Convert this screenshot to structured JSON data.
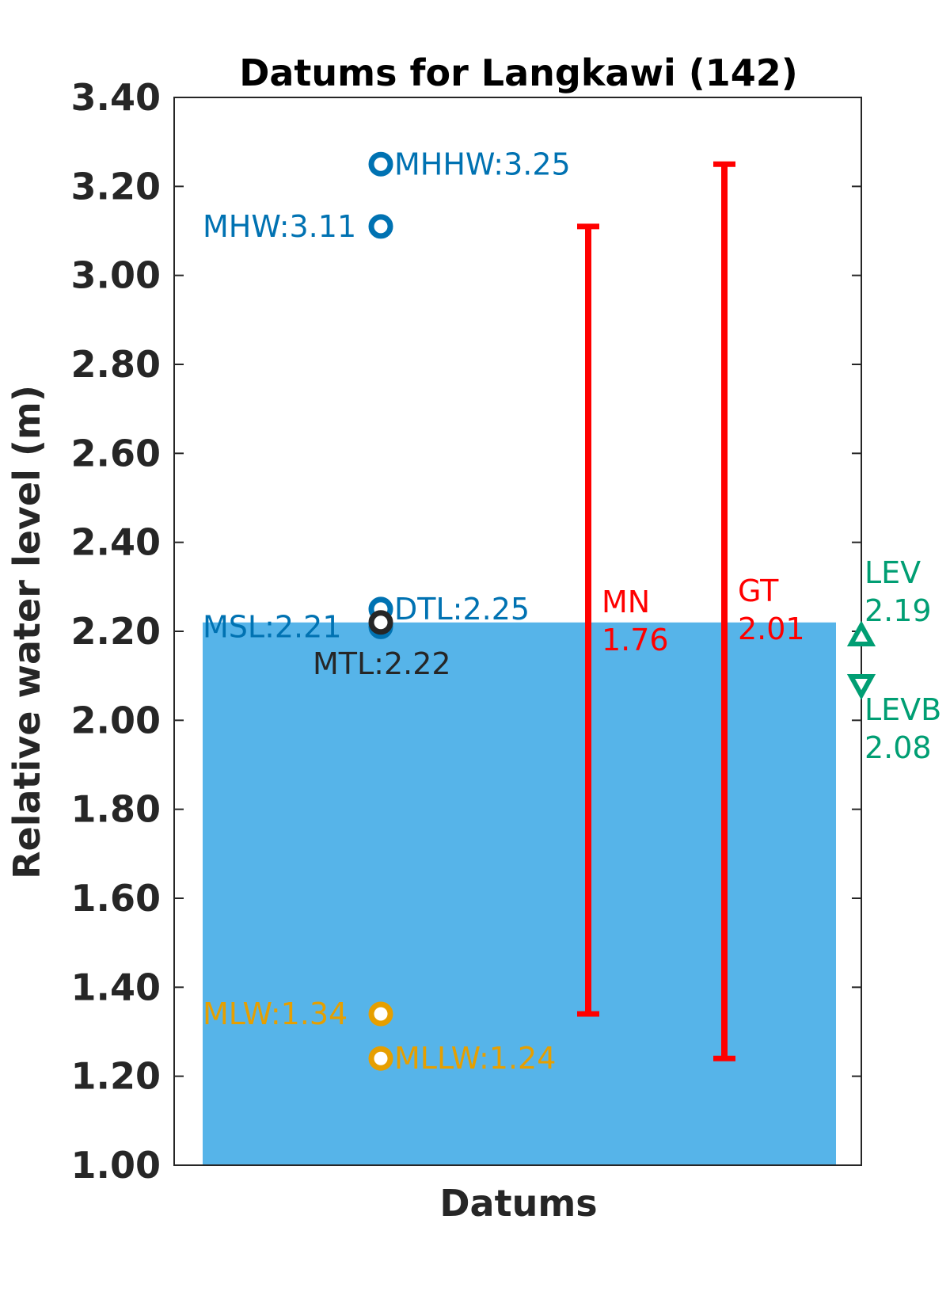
{
  "chart_data": {
    "type": "bar",
    "title": "Datums for Langkawi (142)",
    "xlabel": "Datums",
    "ylabel": "Relative water level (m)",
    "ylim": [
      1.0,
      3.4
    ],
    "y_ticks": [
      "1.00",
      "1.20",
      "1.40",
      "1.60",
      "1.80",
      "2.00",
      "2.20",
      "2.40",
      "2.60",
      "2.80",
      "3.00",
      "3.20",
      "3.40"
    ],
    "y_tick_values": [
      1.0,
      1.2,
      1.4,
      1.6,
      1.8,
      2.0,
      2.2,
      2.4,
      2.6,
      2.8,
      3.0,
      3.2,
      3.4
    ],
    "grid": false,
    "bar": {
      "value": 2.22,
      "color": "#56B4E9"
    },
    "datums": [
      {
        "name": "MHHW",
        "label": "MHHW:3.25",
        "value": 3.25,
        "color": "#0072B2",
        "side": "right"
      },
      {
        "name": "MHW",
        "label": "MHW:3.11",
        "value": 3.11,
        "color": "#0072B2",
        "side": "left"
      },
      {
        "name": "DTL",
        "label": "DTL:2.25",
        "value": 2.25,
        "color": "#0072B2",
        "side": "right"
      },
      {
        "name": "MSL",
        "label": "MSL:2.21",
        "value": 2.21,
        "color": "#0072B2",
        "side": "left"
      },
      {
        "name": "MTL",
        "label": "MTL:2.22",
        "value": 2.22,
        "color": "#262626",
        "side": "below"
      },
      {
        "name": "MLW",
        "label": "MLW:1.34",
        "value": 1.34,
        "color": "#E69F00",
        "side": "left"
      },
      {
        "name": "MLLW",
        "label": "MLLW:1.24",
        "value": 1.24,
        "color": "#E69F00",
        "side": "right"
      }
    ],
    "ranges": [
      {
        "name": "MN",
        "value_label": "1.76",
        "low": 1.34,
        "high": 3.11,
        "color": "#FF0000"
      },
      {
        "name": "GT",
        "value_label": "2.01",
        "low": 1.24,
        "high": 3.25,
        "color": "#FF0000"
      }
    ],
    "extremes": [
      {
        "name": "LEV",
        "value_label": "2.19",
        "value": 2.19,
        "marker": "triangle-up",
        "color": "#009E73"
      },
      {
        "name": "LEVB",
        "value_label": "2.08",
        "value": 2.08,
        "marker": "triangle-down",
        "color": "#009E73"
      }
    ]
  }
}
